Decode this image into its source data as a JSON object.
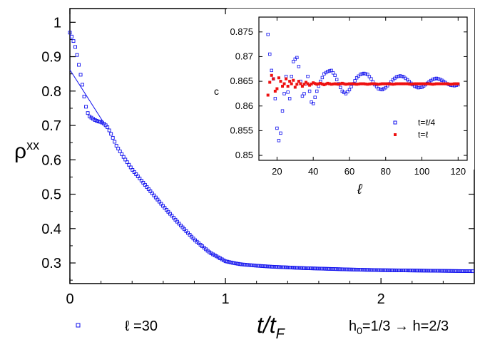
{
  "chart_data": [
    {
      "type": "scatter",
      "xlabel": "t/t",
      "xlabel_sub": "F",
      "ylabel": "ρ",
      "ylabel_sup": "xx",
      "xlim": [
        0,
        2.6
      ],
      "ylim": [
        0.24,
        1.04
      ],
      "xticks": [
        0,
        1,
        2
      ],
      "yticks": [
        0.3,
        0.4,
        0.5,
        0.6,
        0.7,
        0.8,
        0.9,
        1
      ],
      "grid": false,
      "annotation": "h₀=1/3 → h=2/3",
      "annotation_parts": {
        "a": "h",
        "a_sub": "0",
        "b": "=1/3 → h=2/3"
      },
      "legend": {
        "placement": "bottom-left",
        "entries": [
          {
            "label": "ℓ =30",
            "color": "#1010ee",
            "marker": "open-square"
          }
        ]
      },
      "series": [
        {
          "label": "ℓ =30",
          "marker": "open-square",
          "color": "#1010ee",
          "x": [
            0.0,
            0.02,
            0.04,
            0.06,
            0.08,
            0.1,
            0.12,
            0.14,
            0.16,
            0.18,
            0.2,
            0.22,
            0.24,
            0.26,
            0.28,
            0.3,
            0.35,
            0.4,
            0.5,
            0.6,
            0.7,
            0.8,
            0.9,
            1.0,
            1.05,
            1.1,
            1.2,
            1.3,
            1.5,
            1.8,
            2.0,
            2.2,
            2.4,
            2.6
          ],
          "y": [
            0.97,
            0.95,
            0.92,
            0.87,
            0.82,
            0.76,
            0.728,
            0.722,
            0.716,
            0.712,
            0.71,
            0.705,
            0.696,
            0.68,
            0.66,
            0.64,
            0.605,
            0.572,
            0.518,
            0.465,
            0.415,
            0.368,
            0.33,
            0.305,
            0.3,
            0.296,
            0.292,
            0.289,
            0.285,
            0.281,
            0.279,
            0.278,
            0.277,
            0.276
          ]
        },
        {
          "label": "linear fit",
          "style": "line",
          "color": "#1010ee",
          "x": [
            0.0,
            0.22
          ],
          "y": [
            0.862,
            0.706
          ]
        }
      ]
    },
    {
      "type": "scatter",
      "inset": true,
      "xlabel": "ℓ",
      "ylabel": "c",
      "xlim": [
        10,
        125
      ],
      "ylim": [
        0.849,
        0.878
      ],
      "xticks": [
        20,
        40,
        60,
        80,
        100,
        120
      ],
      "yticks": [
        0.85,
        0.855,
        0.86,
        0.865,
        0.87,
        0.875
      ],
      "grid": false,
      "legend": {
        "placement": "bottom-right"
      },
      "series": [
        {
          "name": "t=ℓ/4",
          "marker": "open-square",
          "color": "#1010ee",
          "x": [
            15,
            16,
            17,
            18,
            19,
            20,
            21,
            22,
            23,
            24,
            25,
            26,
            27,
            28,
            29,
            30,
            31,
            32,
            33,
            34,
            35,
            36,
            37,
            38,
            39,
            40,
            42,
            44,
            46,
            48,
            50,
            52,
            54,
            56,
            58,
            60,
            62,
            64,
            66,
            68,
            70,
            72,
            74,
            76,
            78,
            80,
            82,
            84,
            86,
            88,
            90,
            92,
            94,
            96,
            98,
            100,
            102,
            104,
            106,
            108,
            110,
            112,
            114,
            116,
            118,
            120
          ],
          "y": [
            0.8745,
            0.8705,
            0.8672,
            0.8655,
            0.8615,
            0.8555,
            0.853,
            0.8545,
            0.859,
            0.8625,
            0.866,
            0.8628,
            0.8615,
            0.866,
            0.869,
            0.8695,
            0.8698,
            0.868,
            0.865,
            0.862,
            0.8625,
            0.8645,
            0.866,
            0.863,
            0.8608,
            0.8605,
            0.863,
            0.865,
            0.8665,
            0.867,
            0.8672,
            0.8662,
            0.8645,
            0.863,
            0.8625,
            0.8633,
            0.8645,
            0.8657,
            0.8664,
            0.8666,
            0.8664,
            0.8655,
            0.8643,
            0.8635,
            0.8633,
            0.8637,
            0.8645,
            0.8653,
            0.8659,
            0.8661,
            0.8659,
            0.8653,
            0.8646,
            0.864,
            0.8637,
            0.8638,
            0.8643,
            0.8649,
            0.8654,
            0.8656,
            0.8654,
            0.865,
            0.8645,
            0.8642,
            0.8641,
            0.8643
          ]
        },
        {
          "name": "t=ℓ",
          "marker": "filled-square",
          "color": "#ee1111",
          "x": [
            15,
            16,
            17,
            18,
            19,
            20,
            21,
            22,
            23,
            24,
            25,
            26,
            27,
            28,
            29,
            30,
            32,
            34,
            36,
            38,
            40,
            42,
            44,
            46,
            48,
            50,
            52,
            54,
            56,
            58,
            60,
            62,
            64,
            66,
            68,
            70,
            72,
            74,
            76,
            78,
            80,
            82,
            84,
            86,
            88,
            90,
            92,
            94,
            96,
            98,
            100,
            102,
            104,
            106,
            108,
            110,
            112,
            114,
            116,
            118,
            120
          ],
          "y": [
            0.8622,
            0.8648,
            0.8662,
            0.8655,
            0.863,
            0.8635,
            0.8657,
            0.865,
            0.864,
            0.8645,
            0.8655,
            0.864,
            0.865,
            0.8645,
            0.8652,
            0.8638,
            0.865,
            0.864,
            0.8648,
            0.8642,
            0.8647,
            0.8644,
            0.8646,
            0.8643,
            0.8646,
            0.8644,
            0.8645,
            0.8644,
            0.8646,
            0.8644,
            0.8645,
            0.8645,
            0.8644,
            0.8645,
            0.8645,
            0.8644,
            0.8645,
            0.8645,
            0.8644,
            0.8645,
            0.8645,
            0.8645,
            0.8644,
            0.8645,
            0.8645,
            0.8645,
            0.8645,
            0.8644,
            0.8645,
            0.8645,
            0.8645,
            0.8645,
            0.8645,
            0.8644,
            0.8645,
            0.8645,
            0.8645,
            0.8645,
            0.8644,
            0.8645,
            0.8645
          ]
        }
      ]
    }
  ]
}
